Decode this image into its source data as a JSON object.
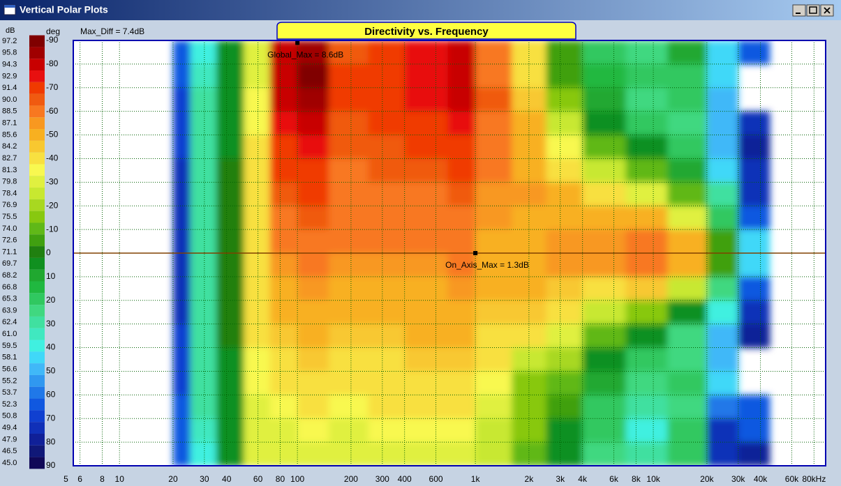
{
  "window": {
    "title": "Vertical Polar Plots"
  },
  "chart_data": {
    "type": "heatmap",
    "title": "Directivity vs. Frequency",
    "annotation": "Max_Diff = 7.4dB",
    "colorbar_label": "dB",
    "y_label": "deg",
    "x_scale": "log",
    "xlim": [
      5.5,
      93000
    ],
    "xticks": [
      5,
      6,
      8,
      10,
      20,
      30,
      40,
      60,
      80,
      100,
      200,
      300,
      400,
      600,
      {
        "value": 1000,
        "label": "1k"
      },
      {
        "value": 2000,
        "label": "2k"
      },
      {
        "value": 3000,
        "label": "3k"
      },
      {
        "value": 4000,
        "label": "4k"
      },
      {
        "value": 6000,
        "label": "6k"
      },
      {
        "value": 8000,
        "label": "8k"
      },
      {
        "value": 10000,
        "label": "10k"
      },
      {
        "value": 20000,
        "label": "20k"
      },
      {
        "value": 30000,
        "label": "30k"
      },
      {
        "value": 40000,
        "label": "40k"
      },
      {
        "value": 60000,
        "label": "60k"
      },
      {
        "value": 80000,
        "label": "80kHz"
      }
    ],
    "ylim": [
      -90,
      90
    ],
    "y_inverted": true,
    "yticks": [
      -90,
      -80,
      -70,
      -60,
      -50,
      -40,
      -30,
      -20,
      -10,
      0,
      10,
      20,
      30,
      40,
      50,
      60,
      70,
      80,
      90
    ],
    "grid": true,
    "x_bins": [
      20,
      25,
      35,
      50,
      70,
      100,
      150,
      250,
      400,
      700,
      1000,
      1600,
      2500,
      4000,
      7000,
      12000,
      20000,
      30000,
      45000
    ],
    "y_bins": [
      -90,
      -80,
      -70,
      -60,
      -50,
      -40,
      -30,
      -20,
      -10,
      0,
      10,
      20,
      30,
      40,
      50,
      60,
      70,
      80,
      90
    ],
    "values": [
      [
        52,
        60,
        70,
        80,
        94,
        96,
        90,
        92,
        93,
        94,
        89,
        82,
        72,
        66,
        64,
        68,
        58,
        52
      ],
      [
        52,
        61,
        70,
        80,
        95,
        97,
        91,
        92,
        93,
        94,
        89,
        83,
        73,
        67,
        65,
        66,
        58,
        null
      ],
      [
        51,
        62,
        70,
        81,
        94,
        96,
        91,
        92,
        93,
        94,
        90,
        84,
        75,
        68,
        64,
        65,
        57,
        null
      ],
      [
        51,
        62,
        70,
        81,
        93,
        94,
        90,
        91,
        92,
        93,
        89,
        85,
        78,
        70,
        66,
        64,
        56,
        50
      ],
      [
        51,
        62,
        70,
        82,
        92,
        93,
        90,
        90,
        91,
        92,
        88,
        86,
        81,
        74,
        70,
        66,
        56,
        48
      ],
      [
        50,
        63,
        71,
        82,
        91,
        92,
        89,
        90,
        90,
        91,
        88,
        86,
        83,
        78,
        74,
        68,
        58,
        50
      ],
      [
        50,
        63,
        71,
        82,
        90,
        91,
        89,
        89,
        89,
        90,
        87,
        87,
        85,
        82,
        80,
        74,
        62,
        50
      ],
      [
        50,
        63,
        71,
        82,
        89,
        90,
        88,
        88,
        89,
        89,
        87,
        86,
        86,
        85,
        85,
        80,
        66,
        52
      ],
      [
        50,
        63,
        71,
        83,
        88,
        89,
        88,
        88,
        88,
        88,
        86,
        86,
        87,
        87,
        89,
        86,
        72,
        58
      ],
      [
        50,
        63,
        71,
        83,
        87,
        88,
        87,
        87,
        87,
        88,
        86,
        86,
        87,
        87,
        89,
        85,
        73,
        58
      ],
      [
        50,
        63,
        71,
        82,
        86,
        87,
        86,
        86,
        86,
        87,
        85,
        85,
        84,
        83,
        84,
        78,
        64,
        52
      ],
      [
        50,
        63,
        71,
        82,
        85,
        86,
        85,
        85,
        86,
        86,
        84,
        84,
        82,
        78,
        76,
        70,
        60,
        50
      ],
      [
        51,
        62,
        71,
        82,
        84,
        85,
        84,
        84,
        85,
        85,
        83,
        82,
        80,
        74,
        70,
        64,
        56,
        48
      ],
      [
        51,
        62,
        70,
        81,
        83,
        84,
        83,
        83,
        84,
        84,
        82,
        78,
        77,
        70,
        66,
        64,
        56,
        null
      ],
      [
        51,
        62,
        70,
        81,
        82,
        83,
        82,
        82,
        83,
        83,
        81,
        76,
        74,
        68,
        64,
        66,
        58,
        null
      ],
      [
        52,
        62,
        70,
        80,
        81,
        82,
        81,
        82,
        82,
        82,
        80,
        75,
        72,
        66,
        62,
        64,
        54,
        52
      ],
      [
        52,
        61,
        70,
        80,
        80,
        81,
        80,
        81,
        81,
        81,
        79,
        75,
        70,
        65,
        60,
        66,
        50,
        52
      ],
      [
        52,
        60,
        70,
        80,
        80,
        80,
        80,
        80,
        80,
        80,
        79,
        74,
        69,
        64,
        62,
        66,
        50,
        48
      ]
    ],
    "colorbar": {
      "levels": [
        97.2,
        95.8,
        94.3,
        92.9,
        91.4,
        {
          "value": 90,
          "label": "90.0"
        },
        88.5,
        87.1,
        85.6,
        84.2,
        82.7,
        81.3,
        79.8,
        78.4,
        76.9,
        75.5,
        {
          "value": 74,
          "label": "74.0"
        },
        72.6,
        71.1,
        69.7,
        68.2,
        66.8,
        65.3,
        63.9,
        62.4,
        {
          "value": 61,
          "label": "61.0"
        },
        59.5,
        58.1,
        56.6,
        55.2,
        53.7,
        52.3,
        50.8,
        49.4,
        47.9,
        46.5,
        {
          "value": 45,
          "label": "45.0"
        }
      ],
      "colors": [
        "#800000",
        "#a00000",
        "#c80000",
        "#e81010",
        "#f03a00",
        "#f05a10",
        "#f87820",
        "#f89820",
        "#f8b020",
        "#f8c830",
        "#f8e040",
        "#f8f850",
        "#e0f040",
        "#c8e830",
        "#a8d820",
        "#88c810",
        "#60b818",
        "#40a010",
        "#208010",
        "#109020",
        "#20a830",
        "#20b840",
        "#30c860",
        "#40d880",
        "#40e0a0",
        "#40e8c0",
        "#40f0e0",
        "#40d8f8",
        "#40b8f8",
        "#3098f0",
        "#2078e8",
        "#1058e0",
        "#1040d0",
        "#1030b8",
        "#102098",
        "#101878",
        "#100858"
      ]
    },
    "reference_line": {
      "y": 0,
      "color": "#804000"
    },
    "markers": [
      {
        "label": "Global_Max = 8.6dB",
        "x": 100,
        "y": -89
      },
      {
        "label": "On_Axis_Max = 1.3dB",
        "x": 1000,
        "y": 0
      }
    ]
  }
}
